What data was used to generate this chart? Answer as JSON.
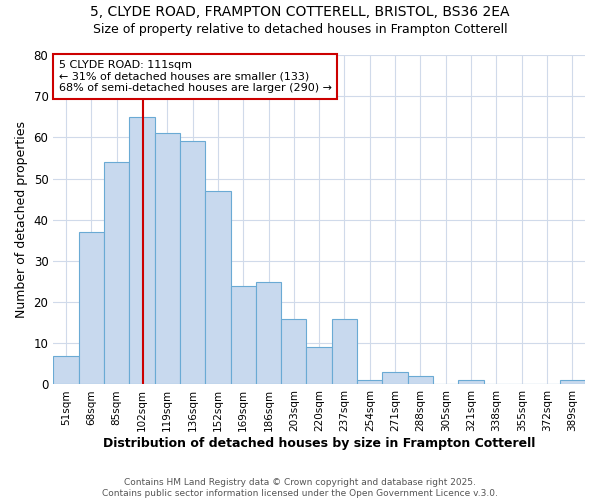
{
  "title_line1": "5, CLYDE ROAD, FRAMPTON COTTERELL, BRISTOL, BS36 2EA",
  "title_line2": "Size of property relative to detached houses in Frampton Cotterell",
  "xlabel": "Distribution of detached houses by size in Frampton Cotterell",
  "ylabel": "Number of detached properties",
  "bin_labels": [
    "51sqm",
    "68sqm",
    "85sqm",
    "102sqm",
    "119sqm",
    "136sqm",
    "152sqm",
    "169sqm",
    "186sqm",
    "203sqm",
    "220sqm",
    "237sqm",
    "254sqm",
    "271sqm",
    "288sqm",
    "305sqm",
    "321sqm",
    "338sqm",
    "355sqm",
    "372sqm",
    "389sqm"
  ],
  "bar_heights": [
    7,
    37,
    54,
    65,
    61,
    59,
    47,
    24,
    25,
    16,
    9,
    16,
    1,
    3,
    2,
    0,
    1,
    0,
    0,
    0,
    1
  ],
  "bar_color": "#c8d9ee",
  "bar_edge_color": "#6aaad4",
  "red_line_bin_index": 3.53,
  "annotation_text_line1": "5 CLYDE ROAD: 111sqm",
  "annotation_text_line2": "← 31% of detached houses are smaller (133)",
  "annotation_text_line3": "68% of semi-detached houses are larger (290) →",
  "annotation_box_color": "#ffffff",
  "annotation_box_edge": "#cc0000",
  "ylim": [
    0,
    80
  ],
  "yticks": [
    0,
    10,
    20,
    30,
    40,
    50,
    60,
    70,
    80
  ],
  "footer_text": "Contains HM Land Registry data © Crown copyright and database right 2025.\nContains public sector information licensed under the Open Government Licence v.3.0.",
  "background_color": "#ffffff",
  "grid_color": "#d0daea",
  "title_fontsize": 10,
  "subtitle_fontsize": 9
}
